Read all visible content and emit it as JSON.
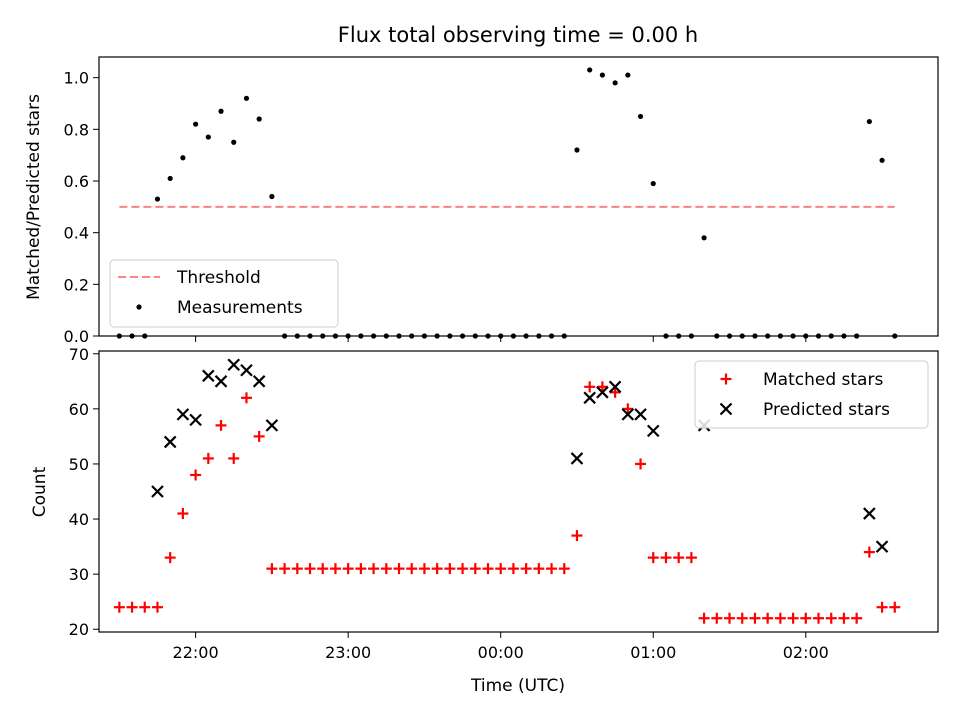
{
  "title": "Flux total observing time = 0.00 h",
  "chart_data": [
    {
      "type": "scatter",
      "ylabel": "Matched/Predicted stars",
      "ylim": [
        0,
        1.08
      ],
      "yticks": [
        "0.0",
        "0.2",
        "0.4",
        "0.6",
        "0.8",
        "1.0"
      ],
      "xlim": [
        "21:22",
        "02:52"
      ],
      "legend_position": "lower-left",
      "series": [
        {
          "name": "Threshold",
          "kind": "dashed-line",
          "color": "#ff8080",
          "points": [
            {
              "x": "21:30",
              "y": 0.5
            },
            {
              "x": "02:35",
              "y": 0.5
            }
          ]
        },
        {
          "name": "Measurements",
          "kind": "dot",
          "color": "#000000",
          "points": [
            {
              "x": "21:30",
              "y": 0.0
            },
            {
              "x": "21:35",
              "y": 0.0
            },
            {
              "x": "21:40",
              "y": 0.0
            },
            {
              "x": "21:45",
              "y": 0.53
            },
            {
              "x": "21:50",
              "y": 0.61
            },
            {
              "x": "21:55",
              "y": 0.69
            },
            {
              "x": "22:00",
              "y": 0.82
            },
            {
              "x": "22:05",
              "y": 0.77
            },
            {
              "x": "22:10",
              "y": 0.87
            },
            {
              "x": "22:15",
              "y": 0.75
            },
            {
              "x": "22:20",
              "y": 0.92
            },
            {
              "x": "22:25",
              "y": 0.84
            },
            {
              "x": "22:30",
              "y": 0.54
            },
            {
              "x": "22:35",
              "y": 0.0
            },
            {
              "x": "22:40",
              "y": 0.0
            },
            {
              "x": "22:45",
              "y": 0.0
            },
            {
              "x": "22:50",
              "y": 0.0
            },
            {
              "x": "22:55",
              "y": 0.0
            },
            {
              "x": "23:00",
              "y": 0.0
            },
            {
              "x": "23:05",
              "y": 0.0
            },
            {
              "x": "23:10",
              "y": 0.0
            },
            {
              "x": "23:15",
              "y": 0.0
            },
            {
              "x": "23:20",
              "y": 0.0
            },
            {
              "x": "23:25",
              "y": 0.0
            },
            {
              "x": "23:30",
              "y": 0.0
            },
            {
              "x": "23:35",
              "y": 0.0
            },
            {
              "x": "23:40",
              "y": 0.0
            },
            {
              "x": "23:45",
              "y": 0.0
            },
            {
              "x": "23:50",
              "y": 0.0
            },
            {
              "x": "23:55",
              "y": 0.0
            },
            {
              "x": "00:00",
              "y": 0.0
            },
            {
              "x": "00:05",
              "y": 0.0
            },
            {
              "x": "00:10",
              "y": 0.0
            },
            {
              "x": "00:15",
              "y": 0.0
            },
            {
              "x": "00:20",
              "y": 0.0
            },
            {
              "x": "00:25",
              "y": 0.0
            },
            {
              "x": "00:30",
              "y": 0.72
            },
            {
              "x": "00:35",
              "y": 1.03
            },
            {
              "x": "00:40",
              "y": 1.01
            },
            {
              "x": "00:45",
              "y": 0.98
            },
            {
              "x": "00:50",
              "y": 1.01
            },
            {
              "x": "00:55",
              "y": 0.85
            },
            {
              "x": "01:00",
              "y": 0.59
            },
            {
              "x": "01:05",
              "y": 0.0
            },
            {
              "x": "01:10",
              "y": 0.0
            },
            {
              "x": "01:15",
              "y": 0.0
            },
            {
              "x": "01:20",
              "y": 0.38
            },
            {
              "x": "01:25",
              "y": 0.0
            },
            {
              "x": "01:30",
              "y": 0.0
            },
            {
              "x": "01:35",
              "y": 0.0
            },
            {
              "x": "01:40",
              "y": 0.0
            },
            {
              "x": "01:45",
              "y": 0.0
            },
            {
              "x": "01:50",
              "y": 0.0
            },
            {
              "x": "01:55",
              "y": 0.0
            },
            {
              "x": "02:00",
              "y": 0.0
            },
            {
              "x": "02:05",
              "y": 0.0
            },
            {
              "x": "02:10",
              "y": 0.0
            },
            {
              "x": "02:15",
              "y": 0.0
            },
            {
              "x": "02:20",
              "y": 0.0
            },
            {
              "x": "02:25",
              "y": 0.83
            },
            {
              "x": "02:30",
              "y": 0.68
            },
            {
              "x": "02:35",
              "y": 0.0
            }
          ]
        }
      ]
    },
    {
      "type": "scatter",
      "xlabel": "Time (UTC)",
      "ylabel": "Count",
      "ylim": [
        19.5,
        70.5
      ],
      "yticks": [
        "20",
        "30",
        "40",
        "50",
        "60",
        "70"
      ],
      "xticks": [
        {
          "value": "22:00",
          "label": "22:00"
        },
        {
          "value": "23:00",
          "label": "23:00"
        },
        {
          "value": "00:00",
          "label": "00:00"
        },
        {
          "value": "01:00",
          "label": "01:00"
        },
        {
          "value": "02:00",
          "label": "02:00"
        }
      ],
      "xlim": [
        "21:22",
        "02:52"
      ],
      "legend_position": "upper-right",
      "series": [
        {
          "name": "Matched stars",
          "kind": "plus",
          "color": "#ff0000",
          "points": [
            {
              "x": "21:30",
              "y": 24
            },
            {
              "x": "21:35",
              "y": 24
            },
            {
              "x": "21:40",
              "y": 24
            },
            {
              "x": "21:45",
              "y": 24
            },
            {
              "x": "21:50",
              "y": 33
            },
            {
              "x": "21:55",
              "y": 41
            },
            {
              "x": "22:00",
              "y": 48
            },
            {
              "x": "22:05",
              "y": 51
            },
            {
              "x": "22:10",
              "y": 57
            },
            {
              "x": "22:15",
              "y": 51
            },
            {
              "x": "22:20",
              "y": 62
            },
            {
              "x": "22:25",
              "y": 55
            },
            {
              "x": "22:30",
              "y": 31
            },
            {
              "x": "22:35",
              "y": 31
            },
            {
              "x": "22:40",
              "y": 31
            },
            {
              "x": "22:45",
              "y": 31
            },
            {
              "x": "22:50",
              "y": 31
            },
            {
              "x": "22:55",
              "y": 31
            },
            {
              "x": "23:00",
              "y": 31
            },
            {
              "x": "23:05",
              "y": 31
            },
            {
              "x": "23:10",
              "y": 31
            },
            {
              "x": "23:15",
              "y": 31
            },
            {
              "x": "23:20",
              "y": 31
            },
            {
              "x": "23:25",
              "y": 31
            },
            {
              "x": "23:30",
              "y": 31
            },
            {
              "x": "23:35",
              "y": 31
            },
            {
              "x": "23:40",
              "y": 31
            },
            {
              "x": "23:45",
              "y": 31
            },
            {
              "x": "23:50",
              "y": 31
            },
            {
              "x": "23:55",
              "y": 31
            },
            {
              "x": "00:00",
              "y": 31
            },
            {
              "x": "00:05",
              "y": 31
            },
            {
              "x": "00:10",
              "y": 31
            },
            {
              "x": "00:15",
              "y": 31
            },
            {
              "x": "00:20",
              "y": 31
            },
            {
              "x": "00:25",
              "y": 31
            },
            {
              "x": "00:30",
              "y": 37
            },
            {
              "x": "00:35",
              "y": 64
            },
            {
              "x": "00:40",
              "y": 64
            },
            {
              "x": "00:45",
              "y": 63
            },
            {
              "x": "00:50",
              "y": 60
            },
            {
              "x": "00:55",
              "y": 50
            },
            {
              "x": "01:00",
              "y": 33
            },
            {
              "x": "01:05",
              "y": 33
            },
            {
              "x": "01:10",
              "y": 33
            },
            {
              "x": "01:15",
              "y": 33
            },
            {
              "x": "01:20",
              "y": 22
            },
            {
              "x": "01:25",
              "y": 22
            },
            {
              "x": "01:30",
              "y": 22
            },
            {
              "x": "01:35",
              "y": 22
            },
            {
              "x": "01:40",
              "y": 22
            },
            {
              "x": "01:45",
              "y": 22
            },
            {
              "x": "01:50",
              "y": 22
            },
            {
              "x": "01:55",
              "y": 22
            },
            {
              "x": "02:00",
              "y": 22
            },
            {
              "x": "02:05",
              "y": 22
            },
            {
              "x": "02:10",
              "y": 22
            },
            {
              "x": "02:15",
              "y": 22
            },
            {
              "x": "02:20",
              "y": 22
            },
            {
              "x": "02:25",
              "y": 34
            },
            {
              "x": "02:30",
              "y": 24
            },
            {
              "x": "02:35",
              "y": 24
            }
          ]
        },
        {
          "name": "Predicted stars",
          "kind": "cross",
          "color": "#000000",
          "points": [
            {
              "x": "21:45",
              "y": 45
            },
            {
              "x": "21:50",
              "y": 54
            },
            {
              "x": "21:55",
              "y": 59
            },
            {
              "x": "22:00",
              "y": 58
            },
            {
              "x": "22:05",
              "y": 66
            },
            {
              "x": "22:10",
              "y": 65
            },
            {
              "x": "22:15",
              "y": 68
            },
            {
              "x": "22:20",
              "y": 67
            },
            {
              "x": "22:25",
              "y": 65
            },
            {
              "x": "22:30",
              "y": 57
            },
            {
              "x": "00:30",
              "y": 51
            },
            {
              "x": "00:35",
              "y": 62
            },
            {
              "x": "00:40",
              "y": 63
            },
            {
              "x": "00:45",
              "y": 64
            },
            {
              "x": "00:50",
              "y": 59
            },
            {
              "x": "00:55",
              "y": 59
            },
            {
              "x": "01:00",
              "y": 56
            },
            {
              "x": "01:20",
              "y": 57
            },
            {
              "x": "02:25",
              "y": 41
            },
            {
              "x": "02:30",
              "y": 35
            }
          ]
        }
      ]
    }
  ]
}
